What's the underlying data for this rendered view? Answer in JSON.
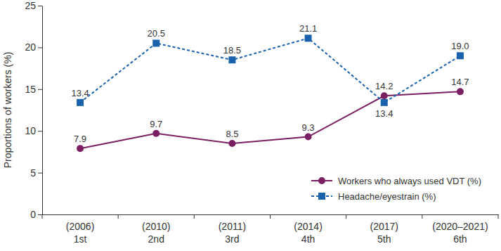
{
  "chart_data": {
    "type": "line",
    "y_label": "Proportions of workers (%)",
    "categories": [
      [
        "(2006)",
        "1st"
      ],
      [
        "(2010)",
        "2nd"
      ],
      [
        "(2011)",
        "3rd"
      ],
      [
        "(2014)",
        "4th"
      ],
      [
        "(2017)",
        "5th"
      ],
      [
        "(2020–2021)",
        "6th"
      ]
    ],
    "series": [
      {
        "name": "Workers who always used VDT (%)",
        "color": "#7b1f63",
        "marker": "circle",
        "line_style": "solid",
        "values": [
          7.9,
          9.7,
          8.5,
          9.3,
          14.2,
          14.7
        ]
      },
      {
        "name": "Headache/eyestrain (%)",
        "color": "#1b62ad",
        "marker": "square",
        "line_style": "dashed",
        "values": [
          13.4,
          20.5,
          18.5,
          21.1,
          13.4,
          19.0
        ],
        "value_labels": [
          "13.4",
          "20.5",
          "18.5",
          "21.1",
          "13.4",
          "19.0"
        ]
      }
    ],
    "ylim": [
      0,
      25
    ],
    "yticks": [
      0,
      5,
      10,
      15,
      20,
      25
    ],
    "grid": false,
    "legend": "lower right",
    "data_labels": true
  }
}
